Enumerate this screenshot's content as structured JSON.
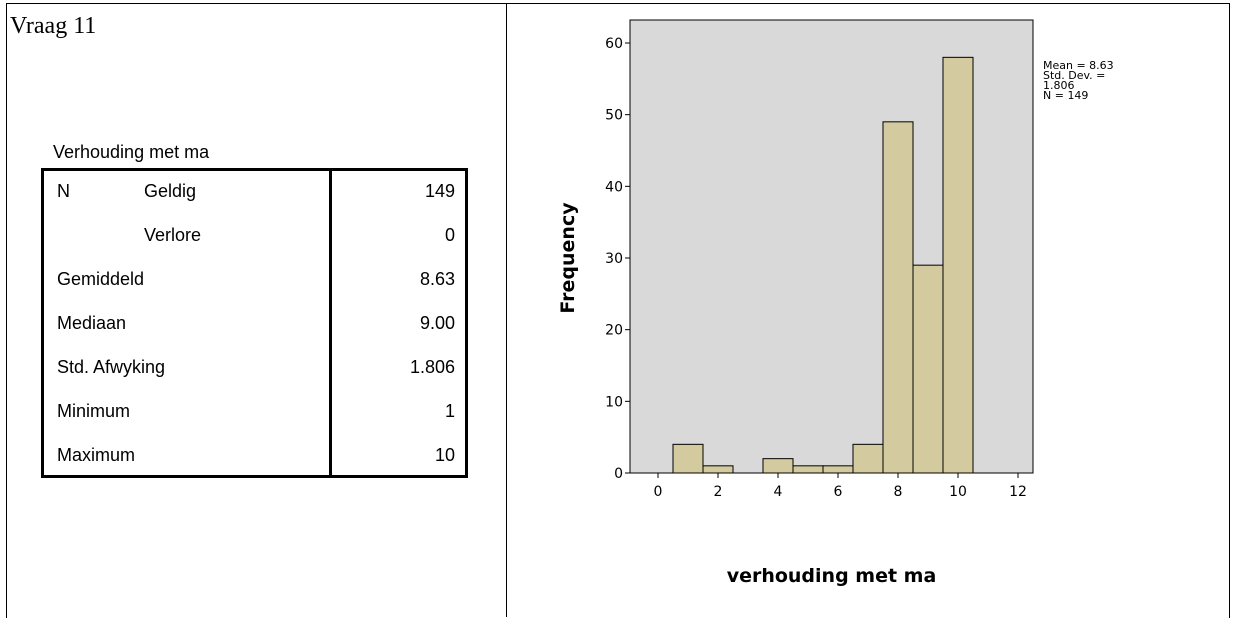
{
  "question": "Vraag 11",
  "table": {
    "caption": "Verhouding met ma",
    "rows": [
      {
        "label1": "N",
        "label2": "Geldig",
        "value": "149"
      },
      {
        "label1": "",
        "label2": "Verlore",
        "value": "0"
      },
      {
        "label1": "Gemiddeld",
        "label2": "",
        "value": "8.63"
      },
      {
        "label1": "Mediaan",
        "label2": "",
        "value": "9.00"
      },
      {
        "label1": "Std. Afwyking",
        "label2": "",
        "value": "1.806"
      },
      {
        "label1": "Minimum",
        "label2": "",
        "value": "1"
      },
      {
        "label1": "Maximum",
        "label2": "",
        "value": "10"
      }
    ]
  },
  "chart_data": {
    "type": "bar",
    "title": "",
    "xlabel": "verhouding met ma",
    "ylabel": "Frequency",
    "xlim": [
      -1,
      13
    ],
    "ylim": [
      0,
      65
    ],
    "xticks": [
      0,
      2,
      4,
      6,
      8,
      10,
      12
    ],
    "yticks": [
      0,
      10,
      20,
      30,
      40,
      50,
      60
    ],
    "bins": [
      {
        "start": 0.5,
        "end": 1.5,
        "value": 4
      },
      {
        "start": 1.5,
        "end": 2.5,
        "value": 1
      },
      {
        "start": 2.5,
        "end": 3.5,
        "value": 0
      },
      {
        "start": 3.5,
        "end": 4.5,
        "value": 2
      },
      {
        "start": 4.5,
        "end": 5.5,
        "value": 1
      },
      {
        "start": 5.5,
        "end": 6.5,
        "value": 1
      },
      {
        "start": 6.5,
        "end": 7.5,
        "value": 4
      },
      {
        "start": 7.5,
        "end": 8.5,
        "value": 49
      },
      {
        "start": 8.5,
        "end": 9.5,
        "value": 29
      },
      {
        "start": 9.5,
        "end": 10.5,
        "value": 58
      }
    ],
    "legend": [
      "Mean = 8.63",
      "Std. Dev. =",
      "1.806",
      "N = 149"
    ],
    "bar_color": "#d3cb9f",
    "plot_bg": "#d9d9d9"
  }
}
